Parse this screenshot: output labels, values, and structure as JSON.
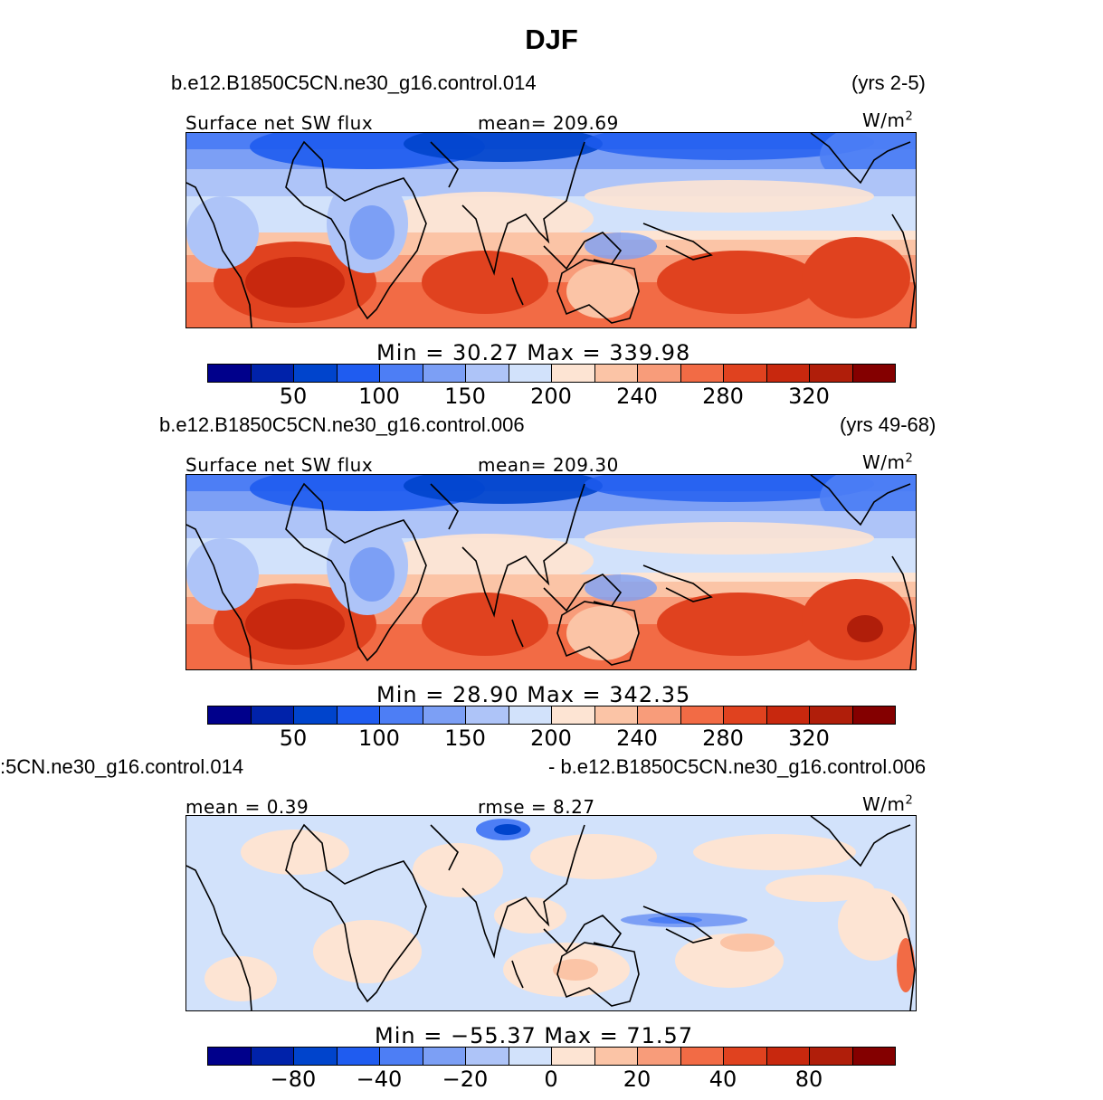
{
  "title": "DJF",
  "colors": [
    "#00008b",
    "#0022aa",
    "#0044cc",
    "#1f5cf0",
    "#4d7ef5",
    "#7c9ff5",
    "#aec4f8",
    "#d2e2fb",
    "#fde4d3",
    "#fbc4a6",
    "#f89c7a",
    "#f26b45",
    "#e0421f",
    "#c8280e",
    "#b01e0a",
    "#840000"
  ],
  "panels": [
    {
      "case_label": "b.e12.B1850C5CN.ne30_g16.control.014",
      "years": "(yrs 2-5)",
      "left_label": "Surface  net  SW  flux",
      "center_label": "mean=  209.69",
      "units": "W/m",
      "units_exp": "2",
      "minmax": "Min  =    30.27  Max  =  339.98",
      "ticks": [
        "50",
        "100",
        "150",
        "200",
        "240",
        "280",
        "320"
      ],
      "field": "swflux"
    },
    {
      "case_label": "b.e12.B1850C5CN.ne30_g16.control.006",
      "years": "(yrs 49-68)",
      "left_label": "Surface  net  SW  flux",
      "center_label": "mean=  209.30",
      "units": "W/m",
      "units_exp": "2",
      "minmax": "Min  =    28.90  Max  =  342.35",
      "ticks": [
        "50",
        "100",
        "150",
        "200",
        "240",
        "280",
        "320"
      ],
      "field": "swflux"
    },
    {
      "case_label": ":5CN.ne30_g16.control.014",
      "years": "- b.e12.B1850C5CN.ne30_g16.control.006",
      "left_label": "mean  =      0.39",
      "center_label": "rmse  =      8.27",
      "units": "W/m",
      "units_exp": "2",
      "minmax": "Min  =  −55.37  Max  =    71.57",
      "ticks": [
        "−80",
        "−40",
        "−20",
        "0",
        "20",
        "40",
        "80"
      ],
      "field": "diff"
    }
  ]
}
